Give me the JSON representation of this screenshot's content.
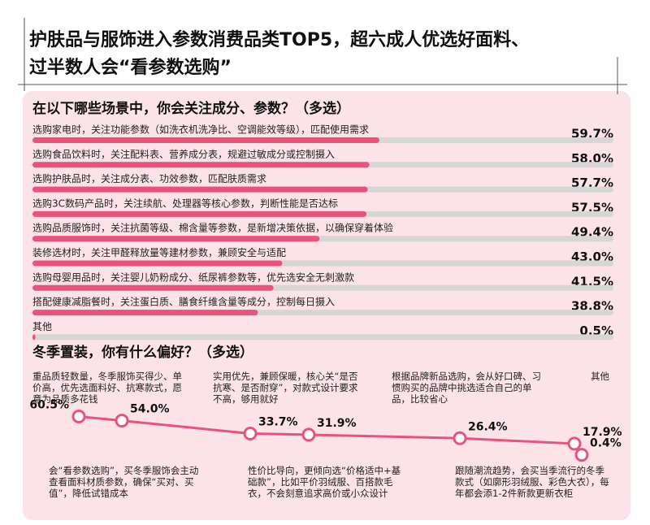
{
  "title": [
    "护肤品与服饰进入参数消费品类TOP5，超六成人优选好面料、",
    "过半数人会“看参数选购”"
  ],
  "chart_data": [
    {
      "type": "hbar",
      "title": "在以下哪些场景中，你会关注成分、参数？（多选）",
      "categories": [
        "选购家电时，关注功能参数（如洗衣机洗净比、空调能效等级），匹配使用需求",
        "选购食品饮料时，关注配料表、营养成分表，规避过敏成分或控制摄入",
        "选购护肤品时，关注成分表、功效参数，匹配肤质需求",
        "选购3C数码产品时，关注续航、处理器等核心参数，判断性能是否达标",
        "选购品质服饰时，关注抗菌等级、棉含量等参数，是新增决策依据，以确保穿着体验",
        "装修选材时，关注甲醛释放量等建材参数，兼顾安全与适配",
        "选购母婴用品时，关注婴儿奶粉成分、纸尿裤参数等，优先选安全无刺激款",
        "搭配健康减脂餐时，关注蛋白质、膳食纤维含量等成分，控制每日摄入",
        "其他"
      ],
      "values": [
        59.7,
        58.0,
        57.7,
        57.5,
        49.4,
        43.0,
        41.5,
        38.8,
        0.5
      ],
      "value_labels": [
        "59.7%",
        "58.0%",
        "57.7%",
        "57.5%",
        "49.4%",
        "43.0%",
        "41.5%",
        "38.8%",
        "0.5%"
      ],
      "xlim": [
        0,
        100
      ],
      "color": "#e9537b",
      "track_color": "#d6d6d6"
    },
    {
      "type": "line",
      "title": "冬季置装，你有什么偏好？（多选）",
      "categories": [
        "重品质轻数量，冬季服饰买得少、单价高，优先选面料好、抗寒款式，愿意为品质多花钱",
        "会“看参数选购”，买冬季服饰会主动查看面料材质参数，确保“买对、买值”，降低试错成本",
        "实用优先，兼顾保暖，核心关“是否抗寒、是否耐穿”，对款式设计要求不高，够用就好",
        "性价比导向，更倾向选“价格适中+基础款”，比如平价羽绒服、百搭款毛衣，不会刻意追求高价或小众设计",
        "根据品牌新品选购，会从好口碑、习惯购买的品牌中挑选适合自己的单品，比较省心",
        "跟随潮流趋势，会买当季流行的冬季款式（如廓形羽绒服、彩色大衣），每年都会添1-2件新款更新衣柜",
        "其他"
      ],
      "values": [
        60.5,
        54.0,
        33.7,
        31.9,
        26.4,
        17.9,
        0.4
      ],
      "value_labels": [
        "60.5%",
        "54.0%",
        "33.7%",
        "31.9%",
        "26.4%",
        "17.9%",
        "0.4%"
      ],
      "ylim": [
        0,
        70
      ],
      "color": "#e9537b"
    }
  ]
}
